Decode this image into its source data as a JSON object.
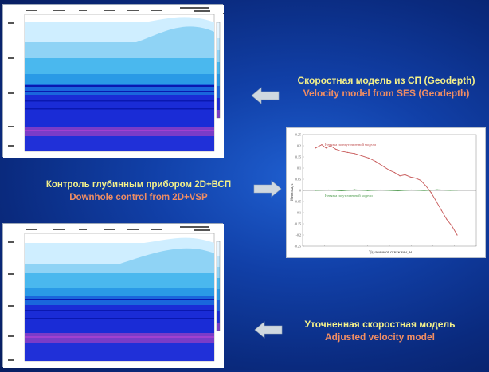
{
  "captions": {
    "velocity_model": {
      "ru": "Скоростная модель из СП (Geodepth)",
      "en": "Velocity model from SES (Geodepth)"
    },
    "downhole_control": {
      "ru": "Контроль глубинным прибором 2D+ВСП",
      "en": "Downhole control from 2D+VSP"
    },
    "adjusted_model": {
      "ru": "Уточненная скоростная модель",
      "en": "Adjusted velocity model"
    }
  },
  "chart_data": {
    "type": "line",
    "xlabel": "Удаление от скважины, м",
    "ylabel": "Невязка, с",
    "xlim": [
      -10000,
      10000
    ],
    "ylim": [
      -0.25,
      0.25
    ],
    "yticks": [
      "0.25",
      "0.2",
      "0.15",
      "0.1",
      "0.05",
      "0",
      "-0.05",
      "-0.1",
      "-0.15",
      "-0.2",
      "-0.25"
    ],
    "series": [
      {
        "name": "Невязка по неуточненной модели",
        "color": "#c85a5a",
        "x": [
          -8500,
          -7800,
          -7300,
          -6800,
          -6200,
          -5500,
          -4800,
          -4000,
          -3200,
          -2400,
          -1600,
          -800,
          0,
          600,
          1200,
          1800,
          2400,
          3000,
          3600,
          4200,
          4800,
          5400,
          6000,
          6600,
          7200,
          7800
        ],
        "y": [
          0.19,
          0.205,
          0.19,
          0.2,
          0.185,
          0.175,
          0.17,
          0.165,
          0.155,
          0.145,
          0.13,
          0.11,
          0.09,
          0.08,
          0.065,
          0.07,
          0.06,
          0.055,
          0.045,
          0.02,
          -0.01,
          -0.05,
          -0.09,
          -0.13,
          -0.16,
          -0.2
        ]
      },
      {
        "name": "Невязка по уточненной модели",
        "color": "#5aa05a",
        "x": [
          -8500,
          -7000,
          -5500,
          -4000,
          -2500,
          -1000,
          0,
          1000,
          2500,
          4000,
          5500,
          7000,
          7800
        ],
        "y": [
          0.0,
          0.002,
          -0.002,
          0.003,
          -0.001,
          0.002,
          0.0,
          -0.002,
          0.002,
          -0.001,
          0.003,
          0.0,
          0.001
        ]
      }
    ]
  }
}
